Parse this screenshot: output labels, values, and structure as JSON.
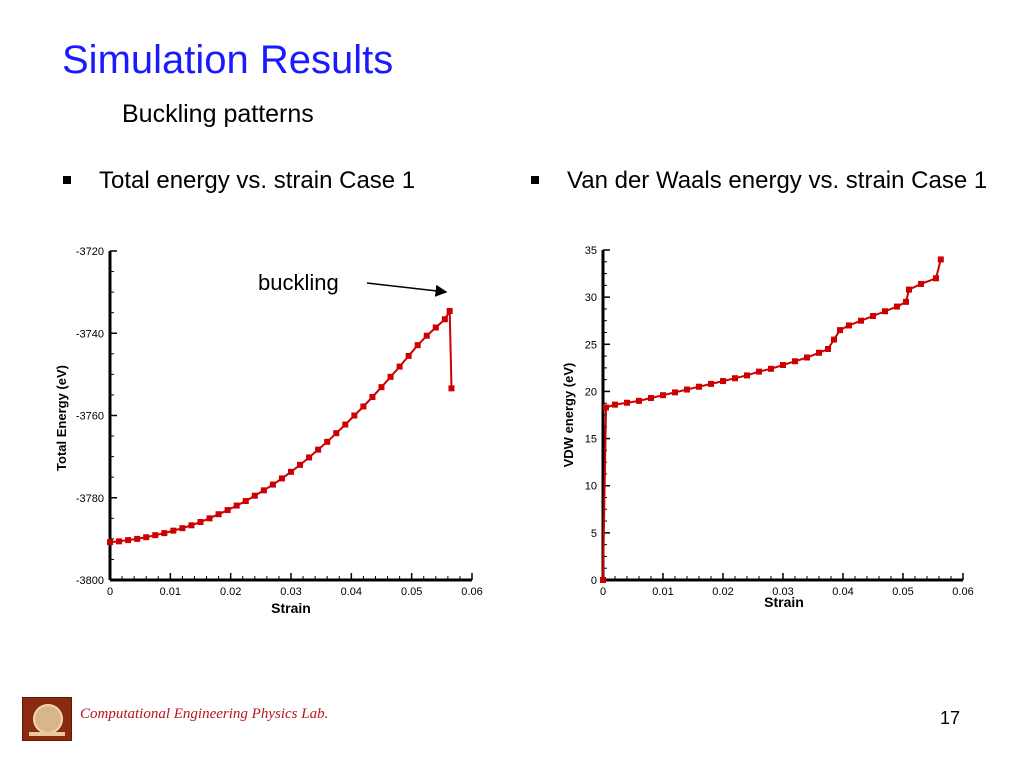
{
  "slide": {
    "title": "Simulation Results",
    "subtitle": "Buckling patterns",
    "bullet_left": "Total energy vs. strain Case 1",
    "bullet_right": "Van der Waals energy vs. strain Case 1",
    "footer": "Computational  Engineering Physics Lab.",
    "page_number": "17",
    "accent_color": "#1a1aff",
    "footer_color": "#b8131f"
  },
  "chart_data": [
    {
      "type": "line",
      "xlabel": "Strain",
      "ylabel": "Total Energy (eV)",
      "xlim": [
        0,
        0.06
      ],
      "ylim": [
        -3800,
        -3720
      ],
      "xticks": [
        "0",
        "0.01",
        "0.02",
        "0.03",
        "0.04",
        "0.05",
        "0.06"
      ],
      "yticks": [
        "-3720",
        "-3740",
        "-3760",
        "-3780",
        "-3800"
      ],
      "color": "#cc0000",
      "annotation": "buckling",
      "series": [
        {
          "x": [
            0,
            0.0015,
            0.003,
            0.0045,
            0.006,
            0.0075,
            0.009,
            0.0105,
            0.012,
            0.0135,
            0.015,
            0.0165,
            0.018,
            0.0195,
            0.021,
            0.0225,
            0.024,
            0.0255,
            0.027,
            0.0285,
            0.03,
            0.0315,
            0.033,
            0.0345,
            0.036,
            0.0375,
            0.039,
            0.0405,
            0.042,
            0.0435,
            0.045,
            0.0465,
            0.048,
            0.0495,
            0.051,
            0.0525,
            0.054,
            0.0555,
            0.0563,
            0.0566
          ],
          "y": [
            -3790.8,
            -3790.6,
            -3790.3,
            -3790.0,
            -3789.6,
            -3789.1,
            -3788.6,
            -3788.0,
            -3787.4,
            -3786.7,
            -3785.9,
            -3785.0,
            -3784.0,
            -3783.0,
            -3781.9,
            -3780.8,
            -3779.5,
            -3778.2,
            -3776.8,
            -3775.3,
            -3773.7,
            -3772.0,
            -3770.2,
            -3768.3,
            -3766.4,
            -3764.3,
            -3762.2,
            -3760.0,
            -3757.8,
            -3755.5,
            -3753.1,
            -3750.6,
            -3748.1,
            -3745.5,
            -3742.9,
            -3740.6,
            -3738.6,
            -3736.6,
            -3734.6,
            -3753.4
          ]
        }
      ]
    },
    {
      "type": "line",
      "xlabel": "Strain",
      "ylabel": "VDW energy (eV)",
      "xlim": [
        0,
        0.06
      ],
      "ylim": [
        0,
        35
      ],
      "xticks": [
        "0",
        "0.01",
        "0.02",
        "0.03",
        "0.04",
        "0.05",
        "0.06"
      ],
      "yticks": [
        "0",
        "5",
        "10",
        "15",
        "20",
        "25",
        "30",
        "35"
      ],
      "color": "#cc0000",
      "series": [
        {
          "x": [
            0,
            0.0005,
            0.002,
            0.004,
            0.006,
            0.008,
            0.01,
            0.012,
            0.014,
            0.016,
            0.018,
            0.02,
            0.022,
            0.024,
            0.026,
            0.028,
            0.03,
            0.032,
            0.034,
            0.036,
            0.0375,
            0.0385,
            0.0395,
            0.041,
            0.043,
            0.045,
            0.047,
            0.049,
            0.0505,
            0.051,
            0.053,
            0.0555,
            0.0563
          ],
          "y": [
            0,
            18.3,
            18.6,
            18.8,
            19.0,
            19.3,
            19.6,
            19.9,
            20.2,
            20.5,
            20.8,
            21.1,
            21.4,
            21.7,
            22.1,
            22.4,
            22.8,
            23.2,
            23.6,
            24.1,
            24.5,
            25.5,
            26.5,
            27.0,
            27.5,
            28.0,
            28.5,
            29.0,
            29.5,
            30.8,
            31.4,
            32.0,
            34.0
          ]
        }
      ]
    }
  ]
}
